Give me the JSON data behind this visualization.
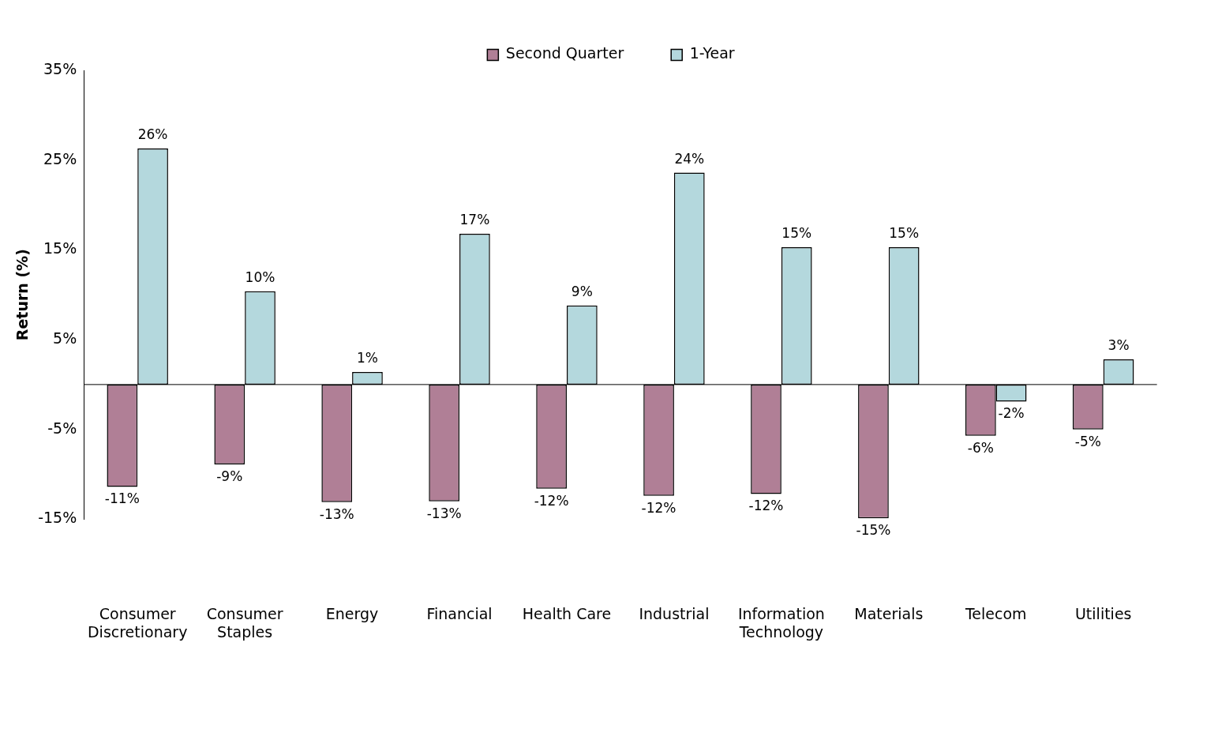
{
  "chart_data": {
    "type": "bar",
    "ylabel": "Return (%)",
    "categories": [
      "Consumer Discretionary",
      "Consumer Staples",
      "Energy",
      "Financial",
      "Health Care",
      "Industrial",
      "Information Technology",
      "Materials",
      "Telecom",
      "Utilities"
    ],
    "series": [
      {
        "name": "Second Quarter",
        "color": "#b07f96",
        "values": [
          -11.4,
          -8.9,
          -13.1,
          -13.0,
          -11.6,
          -12.4,
          -12.2,
          -14.9,
          -5.7,
          -5.0
        ],
        "value_labels": [
          "-11%",
          "-9%",
          "-13%",
          "-13%",
          "-12%",
          "-12%",
          "-12%",
          "-15%",
          "-6%",
          "-5%"
        ]
      },
      {
        "name": "1-Year",
        "color": "#b4d8dd",
        "values": [
          26.3,
          10.4,
          1.4,
          16.8,
          8.8,
          23.6,
          15.3,
          15.3,
          -1.9,
          2.8
        ],
        "value_labels": [
          "26%",
          "10%",
          "1%",
          "17%",
          "9%",
          "24%",
          "15%",
          "15%",
          "-2%",
          "3%"
        ]
      }
    ],
    "ylim": [
      -15,
      35
    ],
    "yticks": [
      {
        "value": -15,
        "label": "-15%"
      },
      {
        "value": -5,
        "label": "-5%"
      },
      {
        "value": 5,
        "label": "5%"
      },
      {
        "value": 15,
        "label": "15%"
      },
      {
        "value": 25,
        "label": "25%"
      },
      {
        "value": 35,
        "label": "35%"
      }
    ],
    "grid": false,
    "legend": "top"
  }
}
